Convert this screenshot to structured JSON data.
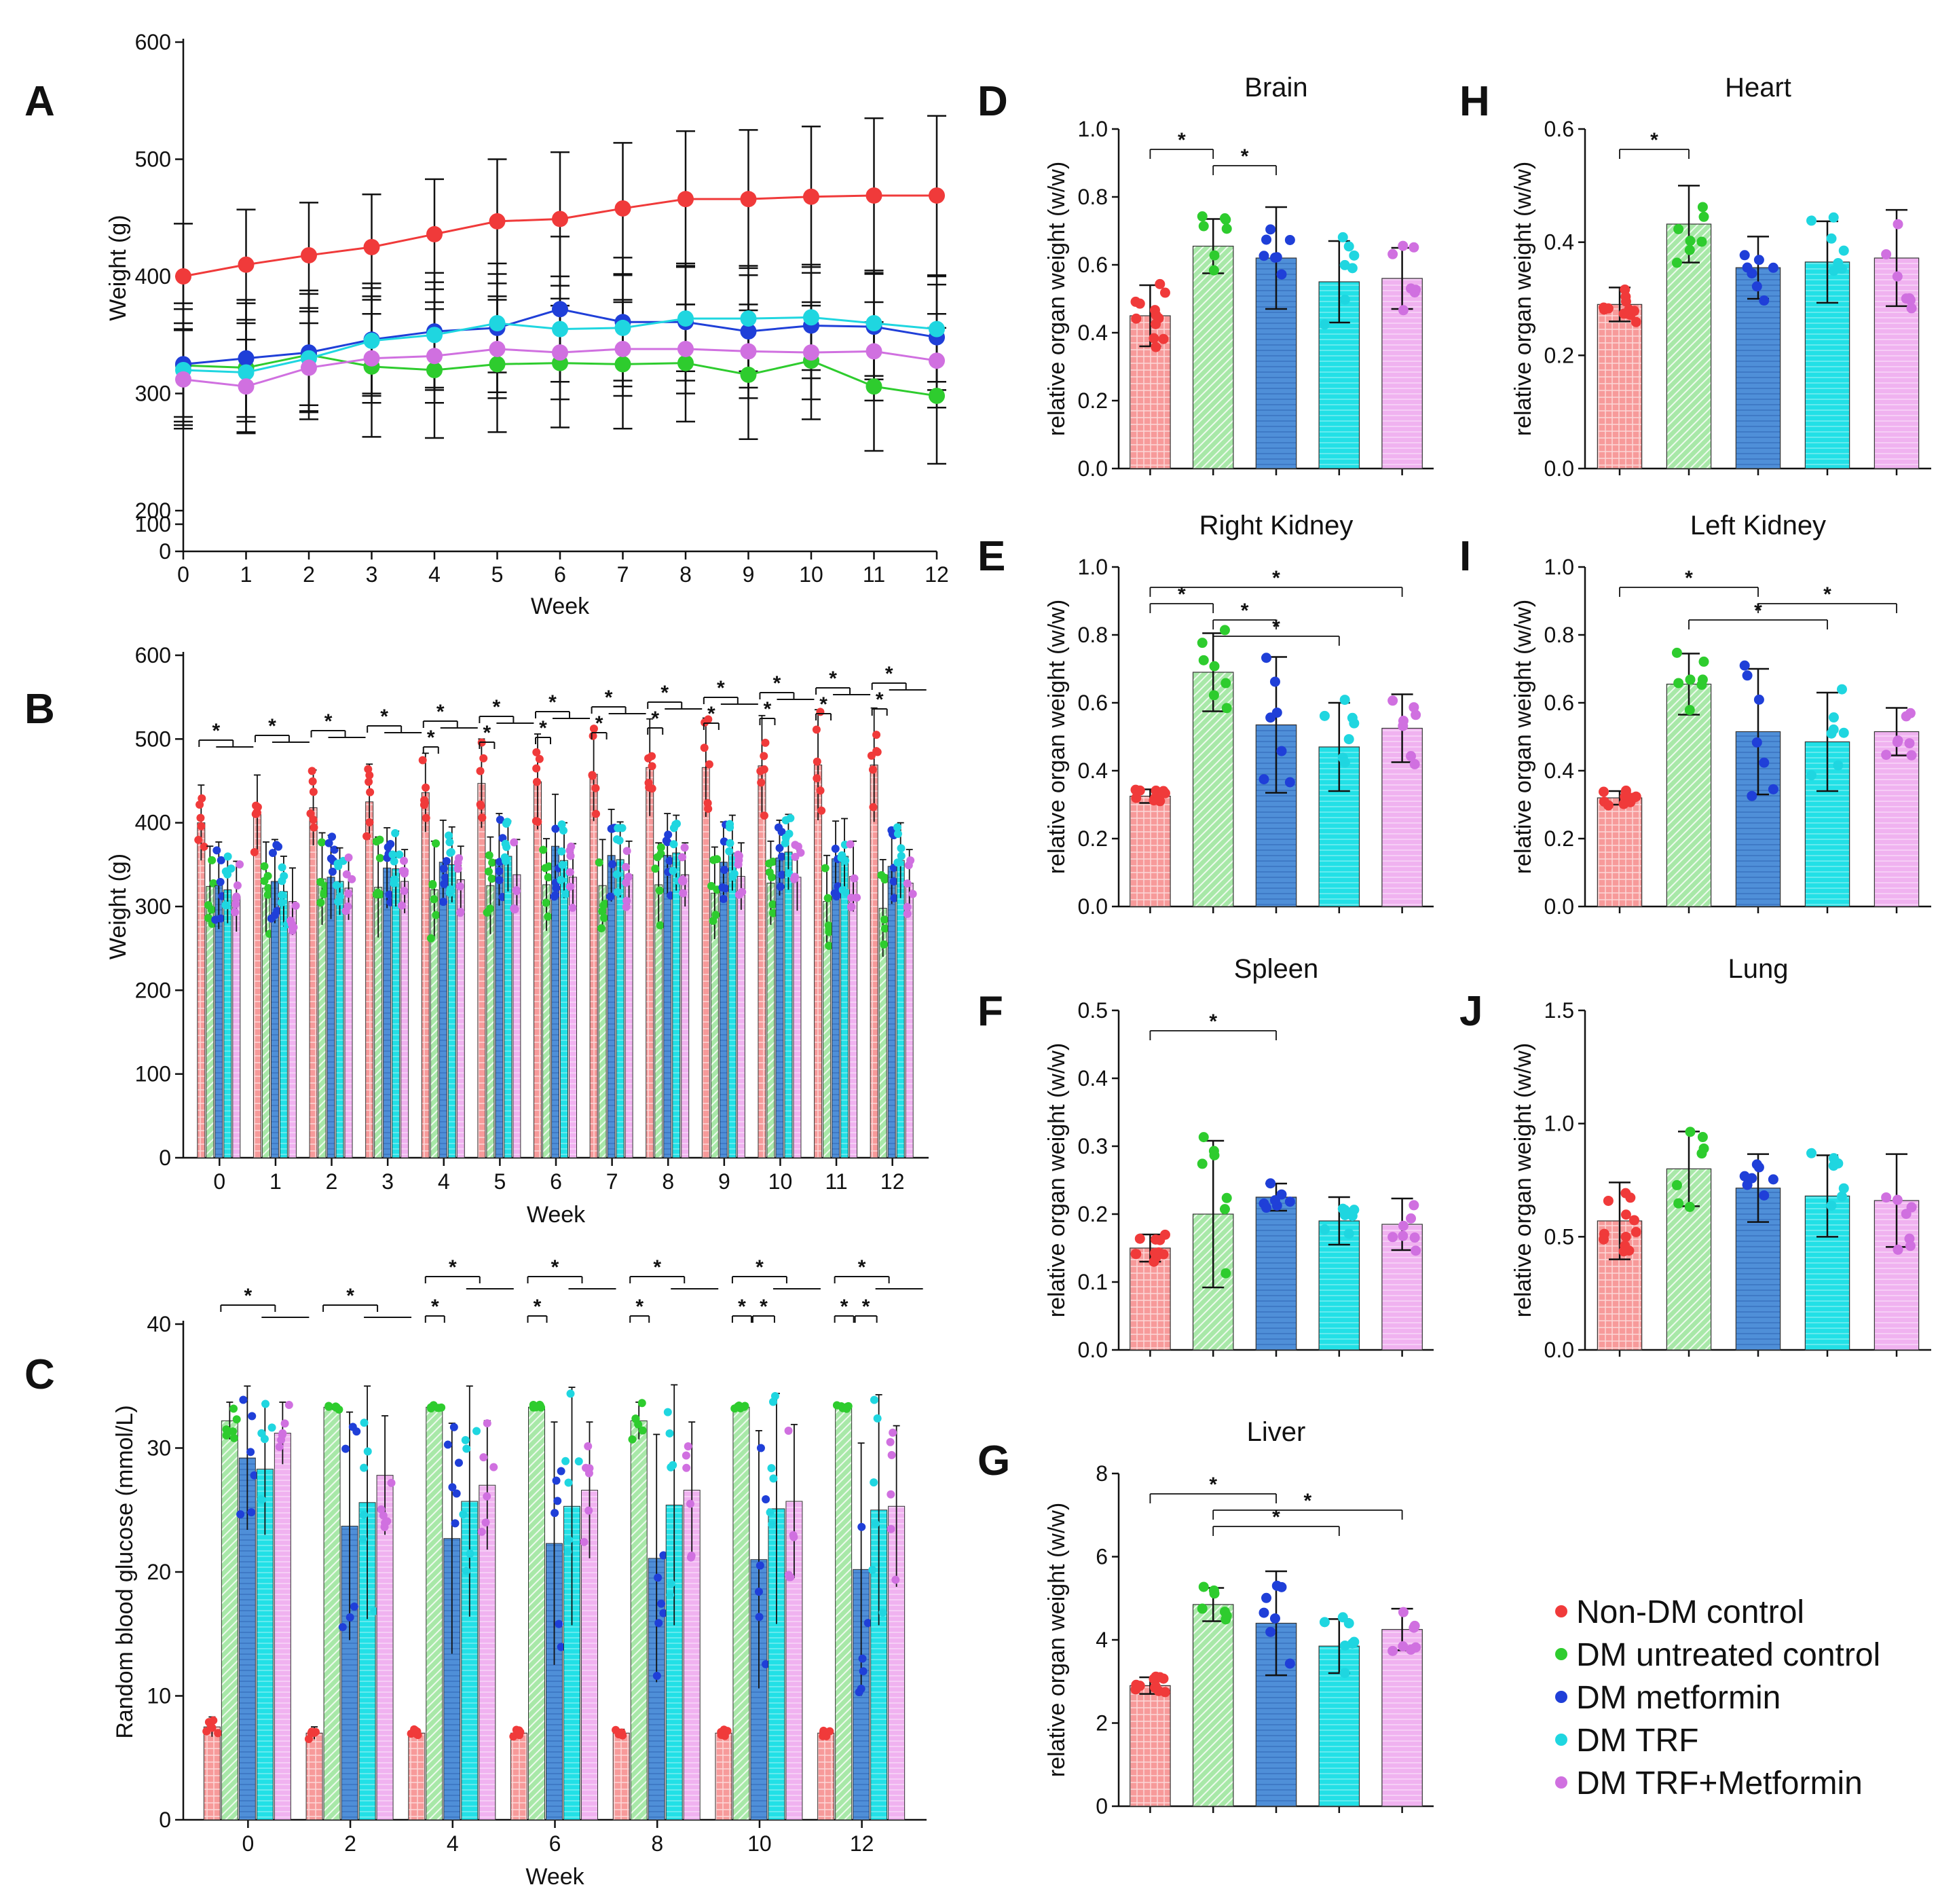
{
  "colors": {
    "nondm": "#f03a3a",
    "dm": "#2ecc2e",
    "met": "#1f3fd8",
    "trf": "#1fd6e0",
    "combo": "#d070e0",
    "bar_nondm": "#f79a9a",
    "bar_dm": "#a8e8a8",
    "bar_met": "#4f8fd8",
    "bar_trf": "#22e0e6",
    "bar_combo": "#f0b2f0",
    "axis": "#111111"
  },
  "legend": {
    "items": [
      {
        "label": "Non-DM control",
        "color": "#f03a3a"
      },
      {
        "label": "DM untreated control",
        "color": "#2ecc2e"
      },
      {
        "label": "DM metformin",
        "color": "#1f3fd8"
      },
      {
        "label": "DM TRF",
        "color": "#1fd6e0"
      },
      {
        "label": "DM TRF+Metformin",
        "color": "#d070e0"
      }
    ]
  },
  "chart_data": [
    {
      "id": "A",
      "panel_label": "A",
      "type": "line",
      "title": "",
      "xlabel": "Week",
      "ylabel": "Weight (g)",
      "x": [
        0,
        1,
        2,
        3,
        4,
        5,
        6,
        7,
        8,
        9,
        10,
        11,
        12
      ],
      "ylim": [
        0,
        600
      ],
      "axis_break": "100-200",
      "yticks": [
        "0",
        "100",
        "200",
        "300",
        "400",
        "500",
        "600"
      ],
      "series": [
        {
          "name": "Non-DM control",
          "color": "#f03a3a",
          "values": [
            400,
            410,
            418,
            425,
            436,
            447,
            449,
            458,
            466,
            466,
            468,
            469,
            469
          ],
          "err": [
            45,
            47,
            45,
            45,
            47,
            53,
            57,
            56,
            58,
            59,
            60,
            66,
            68
          ]
        },
        {
          "name": "DM untreated control",
          "color": "#2ecc2e",
          "values": [
            324,
            322,
            333,
            323,
            320,
            325,
            326,
            325,
            326,
            316,
            328,
            306,
            298
          ],
          "err": [
            48,
            55,
            55,
            60,
            58,
            58,
            55,
            55,
            50,
            55,
            50,
            55,
            58
          ]
        },
        {
          "name": "DM metformin",
          "color": "#1f3fd8",
          "values": [
            325,
            330,
            335,
            346,
            353,
            356,
            372,
            361,
            361,
            353,
            358,
            357,
            348
          ],
          "err": [
            52,
            50,
            50,
            48,
            50,
            55,
            62,
            55,
            50,
            48,
            45,
            45,
            45
          ]
        },
        {
          "name": "DM TRF",
          "color": "#1fd6e0",
          "values": [
            320,
            318,
            330,
            345,
            350,
            360,
            355,
            356,
            364,
            364,
            365,
            360,
            355
          ],
          "err": [
            40,
            42,
            40,
            45,
            45,
            42,
            45,
            45,
            45,
            45,
            45,
            45,
            45
          ]
        },
        {
          "name": "DM TRF+Metformin",
          "color": "#d070e0",
          "values": [
            312,
            306,
            322,
            330,
            332,
            338,
            335,
            338,
            338,
            336,
            335,
            336,
            328
          ],
          "err": [
            42,
            40,
            38,
            38,
            40,
            42,
            40,
            40,
            38,
            40,
            40,
            42,
            40
          ]
        }
      ]
    },
    {
      "id": "B",
      "panel_label": "B",
      "type": "bar",
      "title": "",
      "xlabel": "Week",
      "ylabel": "Weight (g)",
      "categories": [
        "0",
        "1",
        "2",
        "3",
        "4",
        "5",
        "6",
        "7",
        "8",
        "9",
        "10",
        "11",
        "12"
      ],
      "ylim": [
        0,
        600
      ],
      "yticks": [
        "0",
        "100",
        "200",
        "300",
        "400",
        "500",
        "600"
      ],
      "sig_label": "*",
      "series": [
        {
          "name": "Non-DM control",
          "values": [
            400,
            410,
            418,
            425,
            436,
            447,
            449,
            458,
            466,
            466,
            468,
            469,
            469
          ],
          "err": [
            45,
            47,
            45,
            45,
            47,
            53,
            57,
            56,
            58,
            59,
            60,
            66,
            68
          ]
        },
        {
          "name": "DM untreated control",
          "values": [
            324,
            322,
            333,
            323,
            320,
            325,
            326,
            325,
            326,
            316,
            328,
            306,
            298
          ],
          "err": [
            48,
            55,
            55,
            60,
            58,
            58,
            55,
            55,
            50,
            55,
            50,
            55,
            58
          ]
        },
        {
          "name": "DM metformin",
          "values": [
            325,
            330,
            335,
            346,
            353,
            356,
            372,
            361,
            361,
            353,
            358,
            357,
            348
          ],
          "err": [
            52,
            50,
            50,
            48,
            50,
            55,
            62,
            55,
            50,
            48,
            45,
            45,
            45
          ]
        },
        {
          "name": "DM TRF",
          "values": [
            320,
            318,
            330,
            345,
            350,
            360,
            355,
            356,
            364,
            364,
            365,
            360,
            355
          ],
          "err": [
            40,
            42,
            40,
            45,
            45,
            42,
            45,
            45,
            45,
            45,
            45,
            45,
            45
          ]
        },
        {
          "name": "DM TRF+Metformin",
          "values": [
            312,
            306,
            322,
            330,
            332,
            338,
            335,
            338,
            338,
            336,
            335,
            336,
            328
          ],
          "err": [
            42,
            40,
            38,
            38,
            40,
            42,
            40,
            40,
            38,
            40,
            40,
            42,
            40
          ]
        }
      ]
    },
    {
      "id": "C",
      "panel_label": "C",
      "type": "bar",
      "title": "",
      "xlabel": "Week",
      "ylabel": "Random blood glucose (mmol/L)",
      "categories": [
        "0",
        "2",
        "4",
        "6",
        "8",
        "10",
        "12"
      ],
      "ylim": [
        0,
        40
      ],
      "yticks": [
        "0",
        "10",
        "20",
        "30",
        "40"
      ],
      "sig_label": "*",
      "series": [
        {
          "name": "Non-DM control",
          "values": [
            7.5,
            7.0,
            7.0,
            7.0,
            7.0,
            7.0,
            7.0
          ],
          "err": [
            0.8,
            0.5,
            0.3,
            0.3,
            0.3,
            0.3,
            0.3
          ]
        },
        {
          "name": "DM untreated control",
          "values": [
            32.2,
            33.3,
            33.3,
            33.3,
            32.2,
            33.3,
            33.3
          ],
          "err": [
            1.5,
            0.2,
            0.2,
            0.2,
            1.5,
            0.2,
            0.2
          ]
        },
        {
          "name": "DM metformin",
          "values": [
            29.2,
            23.7,
            22.7,
            22.3,
            21.1,
            21.0,
            20.2
          ],
          "err": [
            5.8,
            9.2,
            9.3,
            9.8,
            10.0,
            10.4,
            10.2
          ]
        },
        {
          "name": "DM TRF",
          "values": [
            28.3,
            25.6,
            25.7,
            25.3,
            25.4,
            25.1,
            25.0
          ],
          "err": [
            5.3,
            9.4,
            9.3,
            9.6,
            9.7,
            9.3,
            9.3
          ]
        },
        {
          "name": "DM TRF+Metformin",
          "values": [
            31.2,
            27.8,
            27.0,
            26.6,
            26.6,
            25.7,
            25.3
          ],
          "err": [
            2.5,
            4.8,
            5.2,
            5.5,
            5.5,
            6.2,
            6.5
          ]
        }
      ]
    },
    {
      "id": "D",
      "panel_label": "D",
      "type": "bar",
      "title": "Brain",
      "ylabel": "relative organ weight (w/w)",
      "categories": [
        "Non-DM control",
        "DM untreated control",
        "DM metformin",
        "DM TRF",
        "DM TRF+Metformin"
      ],
      "values": [
        0.45,
        0.655,
        0.62,
        0.55,
        0.56
      ],
      "err": [
        0.09,
        0.08,
        0.15,
        0.12,
        0.09
      ],
      "ylim": [
        0,
        1.0
      ],
      "yticks": [
        "0.0",
        "0.2",
        "0.4",
        "0.6",
        "0.8",
        "1.0"
      ],
      "sig_label": "*"
    },
    {
      "id": "E",
      "panel_label": "E",
      "type": "bar",
      "title": "Right Kidney",
      "ylabel": "relative organ weight (w/w)",
      "categories": [
        "Non-DM control",
        "DM untreated control",
        "DM metformin",
        "DM TRF",
        "DM TRF+Metformin"
      ],
      "values": [
        0.325,
        0.69,
        0.535,
        0.47,
        0.525
      ],
      "err": [
        0.02,
        0.115,
        0.2,
        0.13,
        0.1
      ],
      "ylim": [
        0,
        1.0
      ],
      "yticks": [
        "0.0",
        "0.2",
        "0.4",
        "0.6",
        "0.8",
        "1.0"
      ],
      "sig_label": "*"
    },
    {
      "id": "F",
      "panel_label": "F",
      "type": "bar",
      "title": "Spleen",
      "ylabel": "relative organ weight (w/w)",
      "categories": [
        "Non-DM control",
        "DM untreated control",
        "DM metformin",
        "DM TRF",
        "DM TRF+Metformin"
      ],
      "values": [
        0.15,
        0.2,
        0.225,
        0.19,
        0.185
      ],
      "err": [
        0.02,
        0.108,
        0.02,
        0.035,
        0.038
      ],
      "ylim": [
        0,
        0.5
      ],
      "yticks": [
        "0.0",
        "0.1",
        "0.2",
        "0.3",
        "0.4",
        "0.5"
      ],
      "sig_label": "*"
    },
    {
      "id": "G",
      "panel_label": "G",
      "type": "bar",
      "title": "Liver",
      "ylabel": "relative organ weight (w/w)",
      "categories": [
        "Non-DM control",
        "DM untreated control",
        "DM metformin",
        "DM TRF",
        "DM TRF+Metformin"
      ],
      "values": [
        2.9,
        4.85,
        4.4,
        3.85,
        4.25
      ],
      "err": [
        0.2,
        0.4,
        1.25,
        0.65,
        0.5
      ],
      "ylim": [
        0,
        8
      ],
      "yticks": [
        "0",
        "2",
        "4",
        "6",
        "8"
      ],
      "sig_label": "*"
    },
    {
      "id": "H",
      "panel_label": "H",
      "type": "bar",
      "title": "Heart",
      "ylabel": "relative organ weight (w/w)",
      "categories": [
        "Non-DM control",
        "DM untreated control",
        "DM metformin",
        "DM TRF",
        "DM TRF+Metformin"
      ],
      "values": [
        0.29,
        0.432,
        0.355,
        0.365,
        0.372
      ],
      "err": [
        0.03,
        0.068,
        0.055,
        0.072,
        0.085
      ],
      "ylim": [
        0,
        0.6
      ],
      "yticks": [
        "0.0",
        "0.2",
        "0.4",
        "0.6"
      ],
      "sig_label": "*"
    },
    {
      "id": "I",
      "panel_label": "I",
      "type": "bar",
      "title": "Left Kidney",
      "ylabel": "relative organ weight (w/w)",
      "categories": [
        "Non-DM control",
        "DM untreated control",
        "DM metformin",
        "DM TRF",
        "DM TRF+Metformin"
      ],
      "values": [
        0.32,
        0.655,
        0.515,
        0.485,
        0.515
      ],
      "err": [
        0.02,
        0.09,
        0.185,
        0.145,
        0.07
      ],
      "ylim": [
        0,
        1.0
      ],
      "yticks": [
        "0.0",
        "0.2",
        "0.4",
        "0.6",
        "0.8",
        "1.0"
      ],
      "sig_label": "*"
    },
    {
      "id": "J",
      "panel_label": "J",
      "type": "bar",
      "title": "Lung",
      "ylabel": "relative organ weight (w/w)",
      "categories": [
        "Non-DM control",
        "DM untreated control",
        "DM metformin",
        "DM TRF",
        "DM TRF+Metformin"
      ],
      "values": [
        0.57,
        0.8,
        0.715,
        0.68,
        0.66
      ],
      "err": [
        0.17,
        0.165,
        0.15,
        0.18,
        0.205
      ],
      "ylim": [
        0,
        1.5
      ],
      "yticks": [
        "0.0",
        "0.5",
        "1.0",
        "1.5"
      ],
      "sig_label": ""
    }
  ]
}
